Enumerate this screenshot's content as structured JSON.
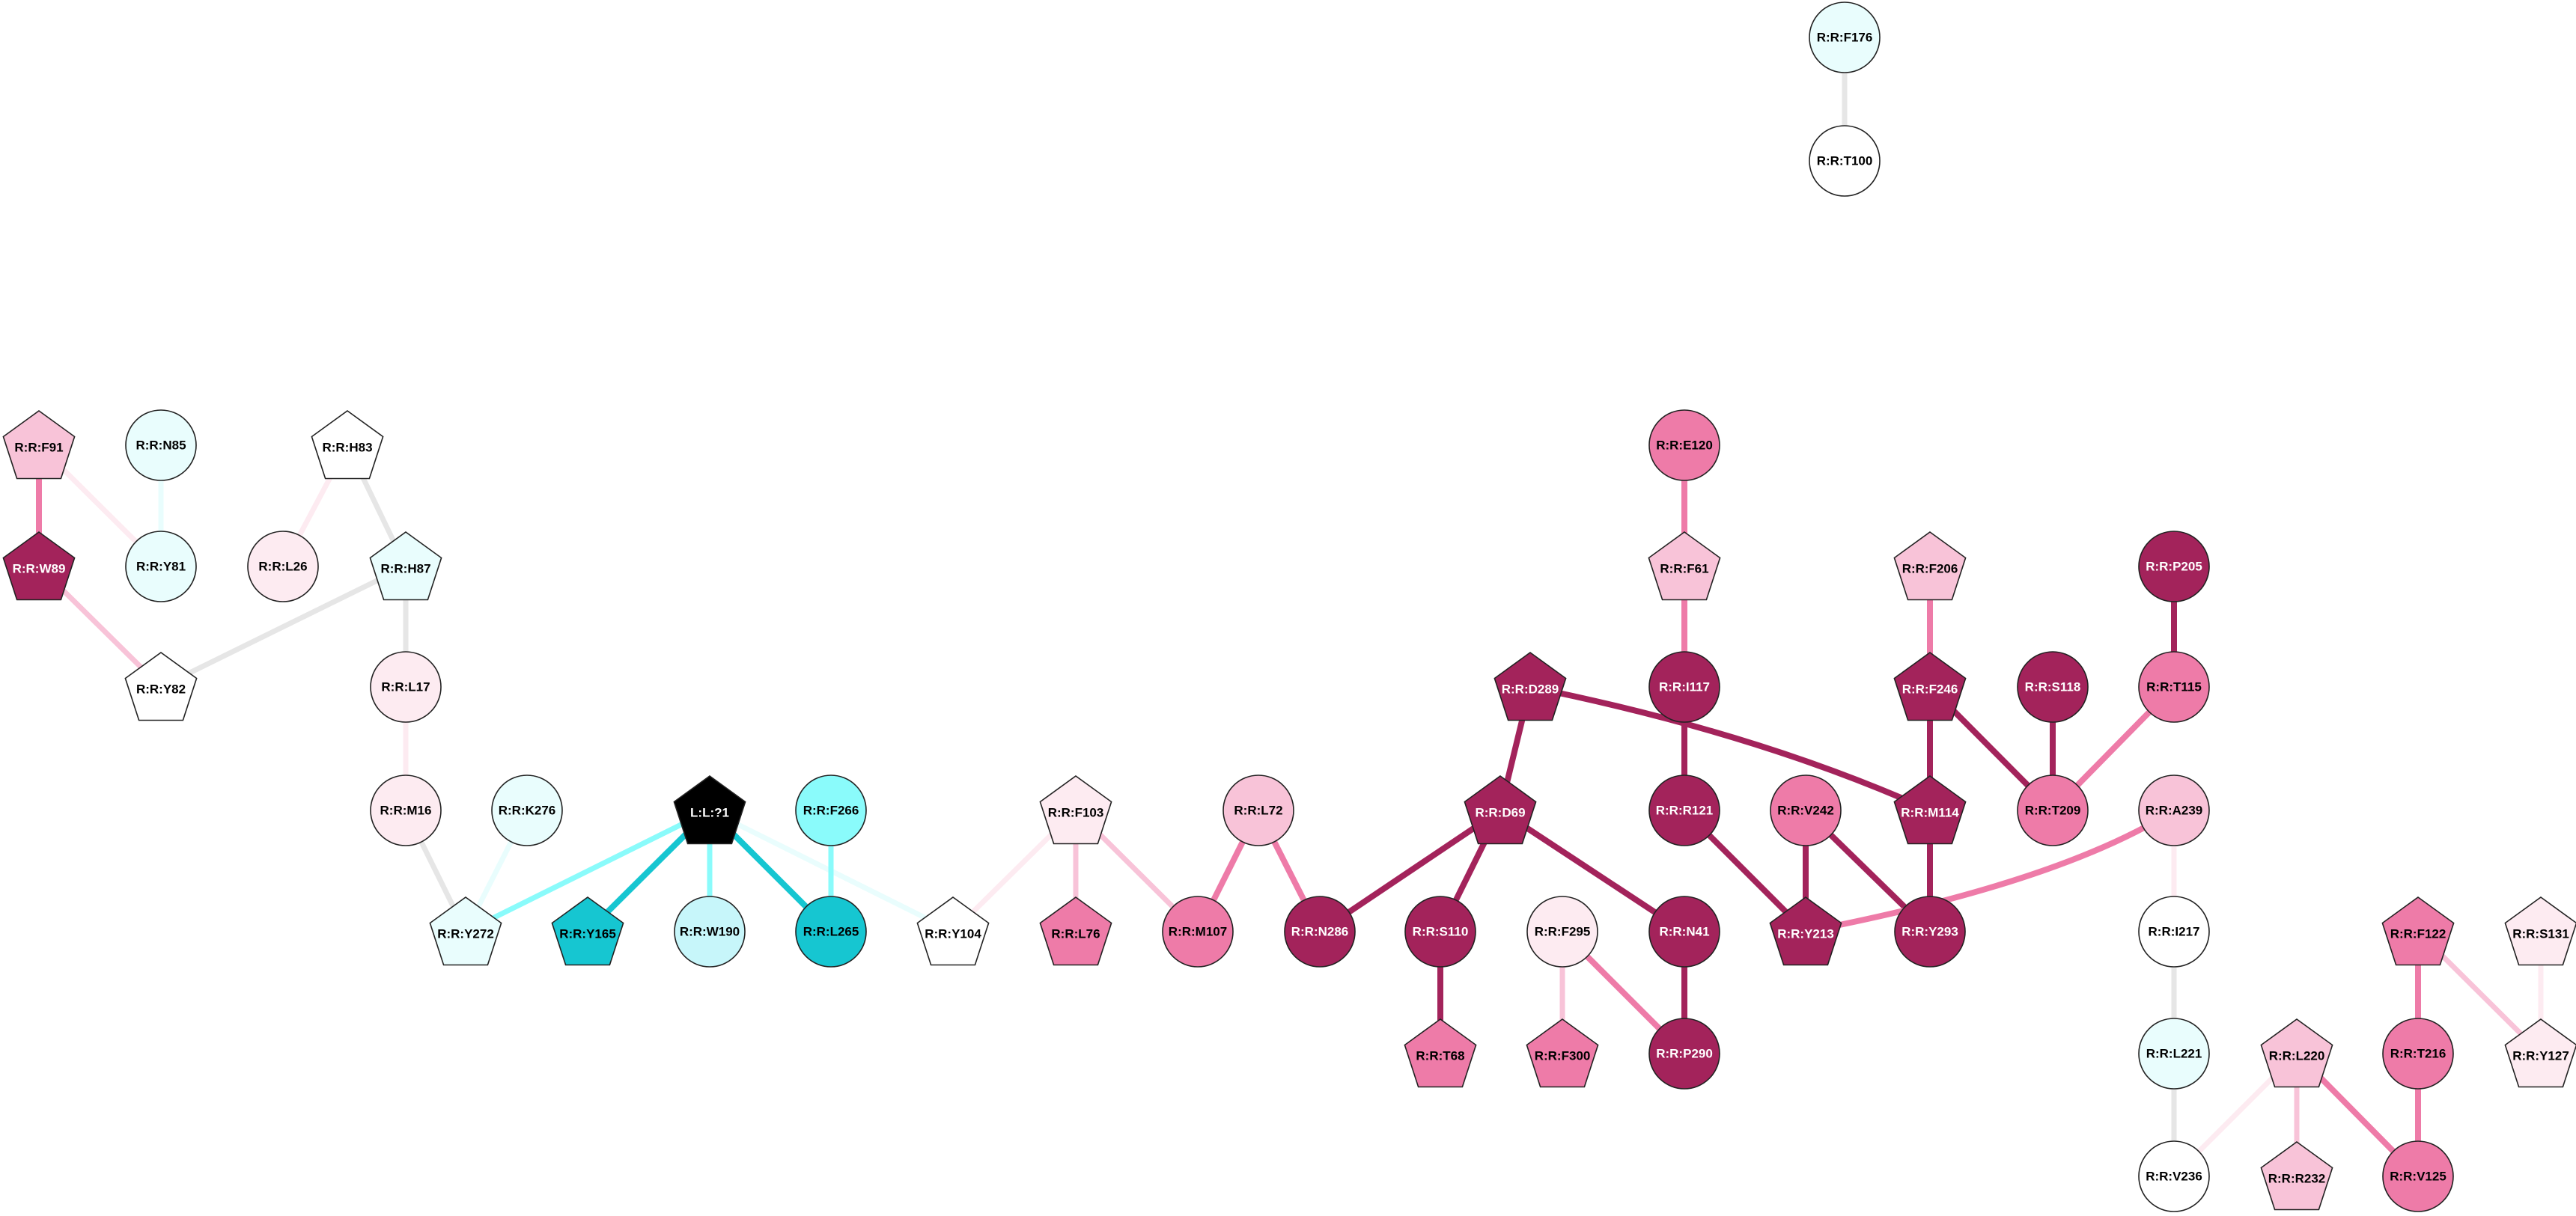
{
  "colors": {
    "dark": "#A3235B",
    "mid": "#EE7BA8",
    "light": "#F8C3D8",
    "pale": "#FDEBF1",
    "white": "#FFFFFF",
    "cyan_pale": "#E9FDFD",
    "cyan_light": "#C7F6FA",
    "cyan_mid": "#8AFBFB",
    "cyan_dark": "#16C6D1",
    "black": "#000000",
    "grey": "#E6E6E6"
  },
  "nodes": [
    {
      "id": "F176",
      "label": "R:R:F176",
      "shape": "circle",
      "fill": "cyan_pale"
    },
    {
      "id": "T100",
      "label": "R:R:T100",
      "shape": "circle",
      "fill": "white"
    },
    {
      "id": "F91",
      "label": "R:R:F91",
      "shape": "pentagon",
      "fill": "light"
    },
    {
      "id": "N85",
      "label": "R:R:N85",
      "shape": "circle",
      "fill": "cyan_pale"
    },
    {
      "id": "H83",
      "label": "R:R:H83",
      "shape": "pentagon",
      "fill": "white"
    },
    {
      "id": "E120",
      "label": "R:R:E120",
      "shape": "circle",
      "fill": "mid"
    },
    {
      "id": "W89",
      "label": "R:R:W89",
      "shape": "pentagon",
      "fill": "dark"
    },
    {
      "id": "Y81",
      "label": "R:R:Y81",
      "shape": "circle",
      "fill": "cyan_pale"
    },
    {
      "id": "L26",
      "label": "R:R:L26",
      "shape": "circle",
      "fill": "pale"
    },
    {
      "id": "H87",
      "label": "R:R:H87",
      "shape": "pentagon",
      "fill": "cyan_pale"
    },
    {
      "id": "F61",
      "label": "R:R:F61",
      "shape": "pentagon",
      "fill": "light"
    },
    {
      "id": "F206",
      "label": "R:R:F206",
      "shape": "pentagon",
      "fill": "light"
    },
    {
      "id": "P205",
      "label": "R:R:P205",
      "shape": "circle",
      "fill": "dark"
    },
    {
      "id": "Y82",
      "label": "R:R:Y82",
      "shape": "pentagon",
      "fill": "white"
    },
    {
      "id": "L17",
      "label": "R:R:L17",
      "shape": "circle",
      "fill": "pale"
    },
    {
      "id": "D289",
      "label": "R:R:D289",
      "shape": "pentagon",
      "fill": "dark"
    },
    {
      "id": "I117",
      "label": "R:R:I117",
      "shape": "circle",
      "fill": "dark"
    },
    {
      "id": "F246",
      "label": "R:R:F246",
      "shape": "pentagon",
      "fill": "dark"
    },
    {
      "id": "S118",
      "label": "R:R:S118",
      "shape": "circle",
      "fill": "dark"
    },
    {
      "id": "T115",
      "label": "R:R:T115",
      "shape": "circle",
      "fill": "mid"
    },
    {
      "id": "M16",
      "label": "R:R:M16",
      "shape": "circle",
      "fill": "pale"
    },
    {
      "id": "K276",
      "label": "R:R:K276",
      "shape": "circle",
      "fill": "cyan_pale"
    },
    {
      "id": "L1",
      "label": "L:L:?1",
      "shape": "pentagon",
      "fill": "black"
    },
    {
      "id": "F266",
      "label": "R:R:F266",
      "shape": "circle",
      "fill": "cyan_mid"
    },
    {
      "id": "F103",
      "label": "R:R:F103",
      "shape": "pentagon",
      "fill": "pale"
    },
    {
      "id": "L72",
      "label": "R:R:L72",
      "shape": "circle",
      "fill": "light"
    },
    {
      "id": "D69",
      "label": "R:R:D69",
      "shape": "pentagon",
      "fill": "dark"
    },
    {
      "id": "R121",
      "label": "R:R:R121",
      "shape": "circle",
      "fill": "dark"
    },
    {
      "id": "V242",
      "label": "R:R:V242",
      "shape": "circle",
      "fill": "mid"
    },
    {
      "id": "M114",
      "label": "R:R:M114",
      "shape": "pentagon",
      "fill": "dark"
    },
    {
      "id": "T209",
      "label": "R:R:T209",
      "shape": "circle",
      "fill": "mid"
    },
    {
      "id": "A239",
      "label": "R:R:A239",
      "shape": "circle",
      "fill": "light"
    },
    {
      "id": "Y272",
      "label": "R:R:Y272",
      "shape": "pentagon",
      "fill": "cyan_pale"
    },
    {
      "id": "Y165",
      "label": "R:R:Y165",
      "shape": "pentagon",
      "fill": "cyan_dark"
    },
    {
      "id": "W190",
      "label": "R:R:W190",
      "shape": "circle",
      "fill": "cyan_light"
    },
    {
      "id": "L265",
      "label": "R:R:L265",
      "shape": "circle",
      "fill": "cyan_dark"
    },
    {
      "id": "Y104",
      "label": "R:R:Y104",
      "shape": "pentagon",
      "fill": "white"
    },
    {
      "id": "L76",
      "label": "R:R:L76",
      "shape": "pentagon",
      "fill": "mid"
    },
    {
      "id": "M107",
      "label": "R:R:M107",
      "shape": "circle",
      "fill": "mid"
    },
    {
      "id": "N286",
      "label": "R:R:N286",
      "shape": "circle",
      "fill": "dark"
    },
    {
      "id": "S110",
      "label": "R:R:S110",
      "shape": "circle",
      "fill": "dark"
    },
    {
      "id": "F295",
      "label": "R:R:F295",
      "shape": "circle",
      "fill": "pale"
    },
    {
      "id": "N41",
      "label": "R:R:N41",
      "shape": "circle",
      "fill": "dark"
    },
    {
      "id": "Y213",
      "label": "R:R:Y213",
      "shape": "pentagon",
      "fill": "dark"
    },
    {
      "id": "Y293",
      "label": "R:R:Y293",
      "shape": "circle",
      "fill": "dark"
    },
    {
      "id": "I217",
      "label": "R:R:I217",
      "shape": "circle",
      "fill": "white"
    },
    {
      "id": "F122",
      "label": "R:R:F122",
      "shape": "pentagon",
      "fill": "mid"
    },
    {
      "id": "S131",
      "label": "R:R:S131",
      "shape": "pentagon",
      "fill": "pale"
    },
    {
      "id": "T68",
      "label": "R:R:T68",
      "shape": "pentagon",
      "fill": "mid"
    },
    {
      "id": "F300",
      "label": "R:R:F300",
      "shape": "pentagon",
      "fill": "mid"
    },
    {
      "id": "P290",
      "label": "R:R:P290",
      "shape": "circle",
      "fill": "dark"
    },
    {
      "id": "L221",
      "label": "R:R:L221",
      "shape": "circle",
      "fill": "cyan_pale"
    },
    {
      "id": "L220",
      "label": "R:R:L220",
      "shape": "pentagon",
      "fill": "light"
    },
    {
      "id": "T216",
      "label": "R:R:T216",
      "shape": "circle",
      "fill": "mid"
    },
    {
      "id": "Y127",
      "label": "R:R:Y127",
      "shape": "pentagon",
      "fill": "pale"
    },
    {
      "id": "V236",
      "label": "R:R:V236",
      "shape": "circle",
      "fill": "white"
    },
    {
      "id": "R232",
      "label": "R:R:R232",
      "shape": "pentagon",
      "fill": "light"
    },
    {
      "id": "V125",
      "label": "R:R:V125",
      "shape": "circle",
      "fill": "mid"
    }
  ],
  "edges": [
    {
      "from": "F176",
      "to": "T100",
      "color": "grey"
    },
    {
      "from": "F91",
      "to": "W89",
      "color": "mid"
    },
    {
      "from": "F91",
      "to": "Y81",
      "color": "pale"
    },
    {
      "from": "N85",
      "to": "Y81",
      "color": "cyan_pale"
    },
    {
      "from": "W89",
      "to": "Y82",
      "color": "light"
    },
    {
      "from": "H83",
      "to": "L26",
      "color": "pale"
    },
    {
      "from": "H83",
      "to": "H87",
      "color": "grey"
    },
    {
      "from": "H87",
      "to": "Y82",
      "color": "grey"
    },
    {
      "from": "H87",
      "to": "L17",
      "color": "grey"
    },
    {
      "from": "L17",
      "to": "M16",
      "color": "pale"
    },
    {
      "from": "M16",
      "to": "Y272",
      "color": "grey"
    },
    {
      "from": "K276",
      "to": "Y272",
      "color": "cyan_pale"
    },
    {
      "from": "L1",
      "to": "Y272",
      "color": "cyan_mid"
    },
    {
      "from": "L1",
      "to": "Y165",
      "color": "cyan_dark"
    },
    {
      "from": "L1",
      "to": "W190",
      "color": "cyan_mid"
    },
    {
      "from": "L1",
      "to": "L265",
      "color": "cyan_dark"
    },
    {
      "from": "L1",
      "to": "Y104",
      "color": "cyan_pale"
    },
    {
      "from": "F266",
      "to": "L265",
      "color": "cyan_mid"
    },
    {
      "from": "F103",
      "to": "Y104",
      "color": "pale"
    },
    {
      "from": "F103",
      "to": "L76",
      "color": "light"
    },
    {
      "from": "F103",
      "to": "M107",
      "color": "light"
    },
    {
      "from": "L72",
      "to": "M107",
      "color": "mid"
    },
    {
      "from": "L72",
      "to": "N286",
      "color": "mid"
    },
    {
      "from": "D69",
      "to": "N286",
      "color": "dark"
    },
    {
      "from": "D69",
      "to": "S110",
      "color": "dark"
    },
    {
      "from": "D69",
      "to": "N41",
      "color": "dark"
    },
    {
      "from": "D289",
      "to": "D69",
      "color": "dark"
    },
    {
      "from": "D289",
      "to": "M114",
      "color": "dark",
      "curve": true
    },
    {
      "from": "S110",
      "to": "T68",
      "color": "dark"
    },
    {
      "from": "F295",
      "to": "F300",
      "color": "light"
    },
    {
      "from": "F295",
      "to": "P290",
      "color": "mid"
    },
    {
      "from": "N41",
      "to": "P290",
      "color": "dark"
    },
    {
      "from": "E120",
      "to": "F61",
      "color": "mid"
    },
    {
      "from": "F61",
      "to": "I117",
      "color": "mid"
    },
    {
      "from": "I117",
      "to": "R121",
      "color": "dark"
    },
    {
      "from": "R121",
      "to": "Y213",
      "color": "dark"
    },
    {
      "from": "V242",
      "to": "Y213",
      "color": "dark"
    },
    {
      "from": "V242",
      "to": "Y293",
      "color": "dark"
    },
    {
      "from": "M114",
      "to": "Y293",
      "color": "dark"
    },
    {
      "from": "F206",
      "to": "F246",
      "color": "mid"
    },
    {
      "from": "F246",
      "to": "M114",
      "color": "dark"
    },
    {
      "from": "F246",
      "to": "T209",
      "color": "dark"
    },
    {
      "from": "S118",
      "to": "T209",
      "color": "dark"
    },
    {
      "from": "P205",
      "to": "T115",
      "color": "dark"
    },
    {
      "from": "T115",
      "to": "T209",
      "color": "mid"
    },
    {
      "from": "A239",
      "to": "Y213",
      "color": "mid",
      "curve": true
    },
    {
      "from": "A239",
      "to": "I217",
      "color": "pale"
    },
    {
      "from": "I217",
      "to": "L221",
      "color": "grey"
    },
    {
      "from": "L221",
      "to": "V236",
      "color": "grey"
    },
    {
      "from": "L220",
      "to": "V236",
      "color": "pale"
    },
    {
      "from": "L220",
      "to": "R232",
      "color": "light"
    },
    {
      "from": "L220",
      "to": "V125",
      "color": "mid"
    },
    {
      "from": "F122",
      "to": "T216",
      "color": "mid"
    },
    {
      "from": "T216",
      "to": "V125",
      "color": "mid"
    },
    {
      "from": "F122",
      "to": "Y127",
      "color": "light"
    },
    {
      "from": "S131",
      "to": "Y127",
      "color": "pale"
    }
  ]
}
